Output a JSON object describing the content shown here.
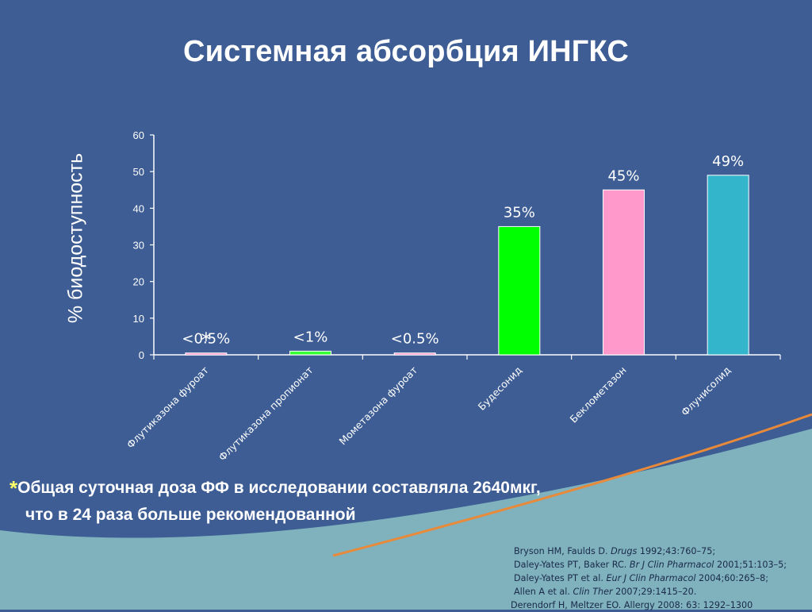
{
  "title": "Системная абсорбция ИНГКС",
  "footnote": {
    "marker": "*",
    "line1": "Общая суточная доза ФФ в исследовании составляла 2640мкг,",
    "line2": "что в 24 раза больше рекомендованной"
  },
  "references": [
    {
      "pre": "Bryson HM, Faulds D. ",
      "journal": "Drugs",
      "post": " 1992;43:760–75;"
    },
    {
      "pre": "Daley-Yates PT, Baker RC. ",
      "journal": "Br J Clin Pharmacol",
      "post": " 2001;51:103–5;"
    },
    {
      "pre": "Daley-Yates PT et al. ",
      "journal": "Eur J Clin Pharmacol",
      "post": " 2004;60:265–8;"
    },
    {
      "pre": "Allen A et al. ",
      "journal": "Clin Ther",
      "post": " 2007;29:1415–20."
    },
    {
      "pre": "Derendorf H, Meltzer EO. Allergy 2008: 63: 1292–1300",
      "journal": "",
      "post": ""
    }
  ],
  "colors": {
    "background": "#3d5d94",
    "wave": "#7fb2bd",
    "accent_line": "#e88a3a"
  },
  "chart_data": {
    "type": "bar",
    "ylabel": "% биодоступность",
    "ylim": [
      0,
      60
    ],
    "yticks": [
      0,
      10,
      20,
      30,
      40,
      50,
      60
    ],
    "grid": false,
    "categories": [
      "Флутиказона фуроат",
      "Флутиказона пропионат",
      "Мометазона фуроат",
      "Будесонид",
      "Беклометазон",
      "Флунисолид"
    ],
    "values": [
      0.5,
      1,
      0.5,
      35,
      45,
      49
    ],
    "data_labels": [
      "<0.5%",
      "<1%",
      "<0.5%",
      "35%",
      "45%",
      "49%"
    ],
    "bar_colors": [
      "#ff99cc",
      "#33ff33",
      "#ff99cc",
      "#00ff00",
      "#ff99cc",
      "#33b5cc"
    ],
    "annotation": {
      "category_index": 0,
      "text": "*"
    }
  }
}
